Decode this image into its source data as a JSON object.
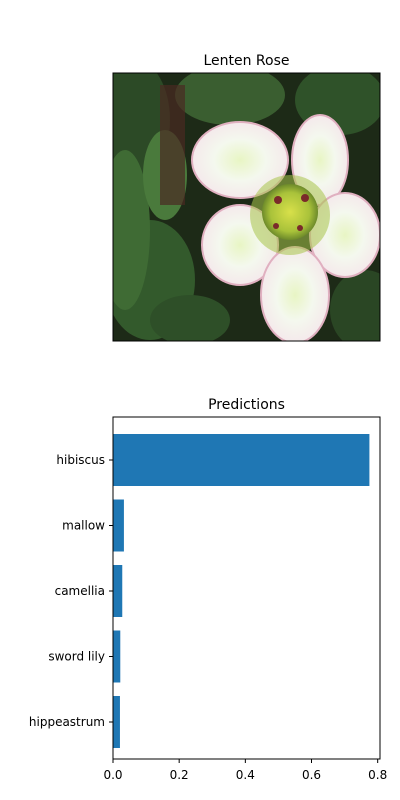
{
  "image_panel": {
    "title": "Lenten Rose",
    "depicts": "flower-photo"
  },
  "chart_data": {
    "type": "bar",
    "orientation": "horizontal",
    "title": "Predictions",
    "xlabel": "",
    "ylabel": "",
    "categories": [
      "hibiscus",
      "mallow",
      "camellia",
      "sword lily",
      "hippeastrum"
    ],
    "values": [
      0.775,
      0.033,
      0.028,
      0.022,
      0.021
    ],
    "xlim": [
      0,
      0.807
    ],
    "xticks": [
      0.0,
      0.2,
      0.4,
      0.6,
      0.8
    ],
    "xtick_labels": [
      "0.0",
      "0.2",
      "0.4",
      "0.6",
      "0.8"
    ],
    "bar_color": "#1f77b4",
    "grid": false,
    "legend": "none"
  }
}
